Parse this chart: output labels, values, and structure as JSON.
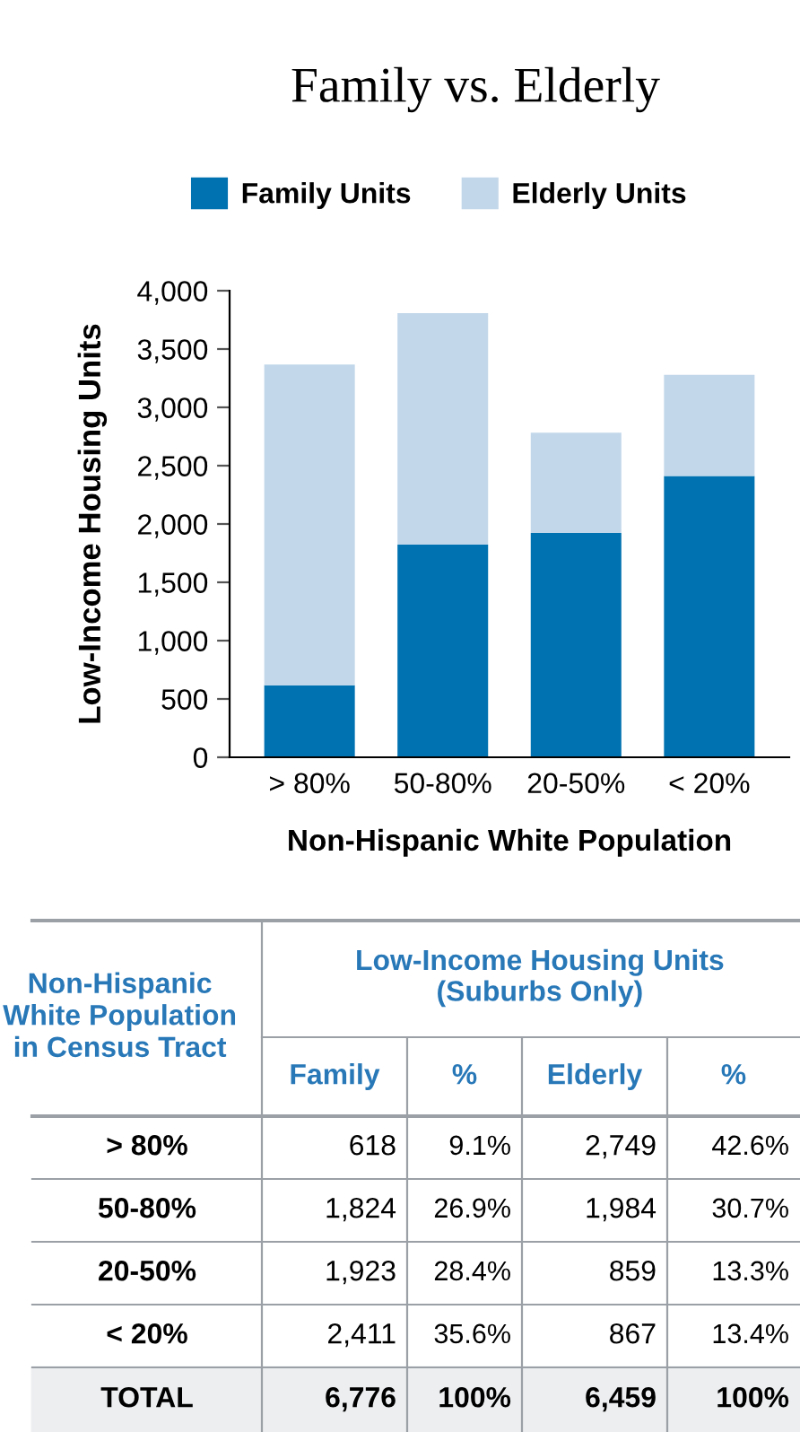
{
  "chart_data": {
    "type": "bar",
    "title": "Family vs. Elderly",
    "xlabel": "Non-Hispanic White Population",
    "ylabel": "Low-Income Housing Units",
    "categories": [
      "> 80%",
      "50-80%",
      "20-50%",
      "< 20%"
    ],
    "series": [
      {
        "name": "Family Units",
        "color": "#0072b1",
        "values": [
          618,
          1824,
          1923,
          2411
        ]
      },
      {
        "name": "Elderly Units",
        "color": "#c2d7ea",
        "values": [
          2749,
          1984,
          859,
          867
        ]
      }
    ],
    "stacked": true,
    "ylim": [
      0,
      4000
    ],
    "yticks": [
      {
        "value": 0,
        "label": "0"
      },
      {
        "value": 500,
        "label": "500"
      },
      {
        "value": 1000,
        "label": "1,000"
      },
      {
        "value": 1500,
        "label": "1,500"
      },
      {
        "value": 2000,
        "label": "2,000"
      },
      {
        "value": 2500,
        "label": "2,500"
      },
      {
        "value": 3000,
        "label": "3,000"
      },
      {
        "value": 3500,
        "label": "3,500"
      },
      {
        "value": 4000,
        "label": "4,000"
      }
    ],
    "grid": false,
    "legend": "top",
    "annotations": [
      "Non-Hispanic White Population in Census Tract",
      "Low-Income Housing Units (Suburbs Only)",
      "Family",
      "%",
      "Elderly",
      "%",
      "9.1%",
      "26.9%",
      "28.4%",
      "35.6%",
      "42.6%",
      "30.7%",
      "13.3%",
      "13.4%",
      "TOTAL",
      "6,776",
      "100%",
      "6,459",
      "100%",
      "618",
      "1,824",
      "1,923",
      "2,411",
      "2,749",
      "1,984",
      "859",
      "867"
    ]
  }
}
